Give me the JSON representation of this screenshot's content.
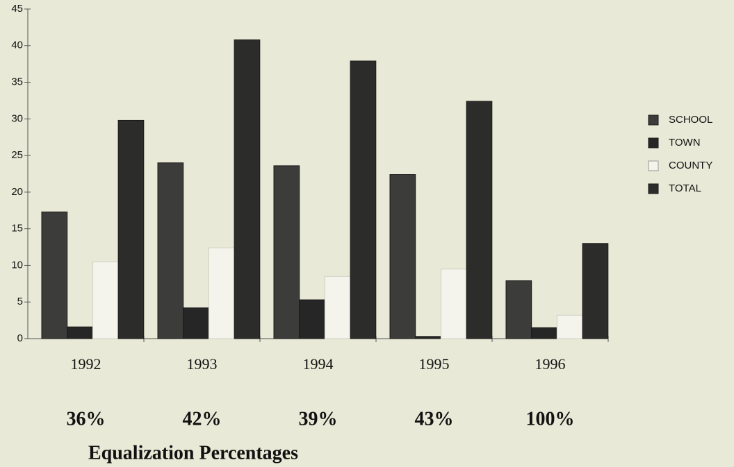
{
  "chart_data": {
    "type": "bar",
    "categories": [
      "1992",
      "1993",
      "1994",
      "1995",
      "1996"
    ],
    "series": [
      {
        "name": "SCHOOL",
        "color": "#3c3c3a",
        "values": [
          17.3,
          24,
          23.6,
          22.4,
          7.9
        ]
      },
      {
        "name": "TOWN",
        "color": "#262626",
        "values": [
          1.6,
          4.2,
          5.3,
          0.3,
          1.5
        ]
      },
      {
        "name": "COUNTY",
        "color": "#f4f4ec",
        "values": [
          10.5,
          12.4,
          8.5,
          9.5,
          3.2
        ]
      },
      {
        "name": "TOTAL",
        "color": "#2c2c2a",
        "values": [
          29.8,
          40.8,
          37.9,
          32.4,
          13.0
        ]
      }
    ],
    "ylim": [
      0,
      45
    ],
    "yticks": [
      0,
      5,
      10,
      15,
      20,
      25,
      30,
      35,
      40,
      45
    ],
    "annotations": [
      "36%",
      "42%",
      "39%",
      "43%",
      "100%"
    ],
    "xlabel": "Equalization Percentages",
    "legend": "right"
  }
}
